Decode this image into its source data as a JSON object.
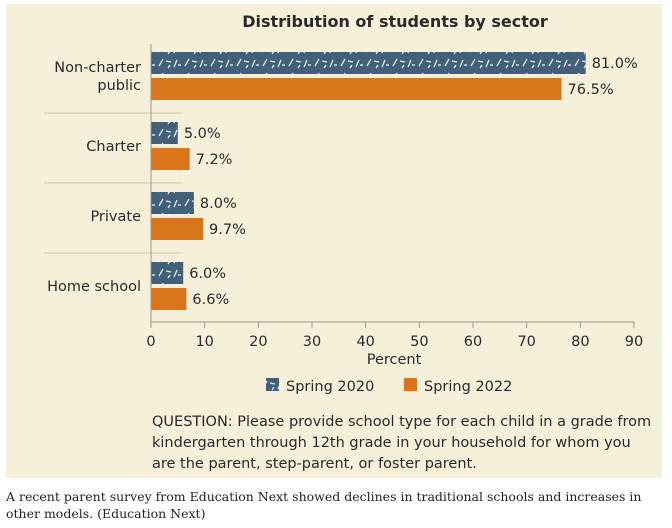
{
  "chart_data": {
    "type": "bar",
    "orientation": "horizontal",
    "title": "Distribution of students by sector",
    "categories": [
      [
        "Non-charter",
        "public"
      ],
      [
        "Charter"
      ],
      [
        "Private"
      ],
      [
        "Home school"
      ]
    ],
    "series": [
      {
        "name": "Spring 2020",
        "values": [
          81.0,
          5.0,
          8.0,
          6.0
        ],
        "labels": [
          "81.0%",
          "5.0%",
          "8.0%",
          "6.0%"
        ],
        "color": "#43607a"
      },
      {
        "name": "Spring 2022",
        "values": [
          76.5,
          7.2,
          9.7,
          6.6
        ],
        "labels": [
          "76.5%",
          "7.2%",
          "9.7%",
          "6.6%"
        ],
        "color": "#d9761c"
      }
    ],
    "xlabel": "Percent",
    "xlim": [
      0,
      90
    ],
    "xticks": [
      0,
      10,
      20,
      30,
      40,
      50,
      60,
      70,
      80,
      90
    ]
  },
  "question": "QUESTION: Please provide school type for each child in a grade from kindergarten through 12th grade in your household for whom you are the parent, step-parent, or foster parent.",
  "caption": "A recent parent survey from Education Next showed declines in traditional schools and increases in other models. (Education Next)"
}
